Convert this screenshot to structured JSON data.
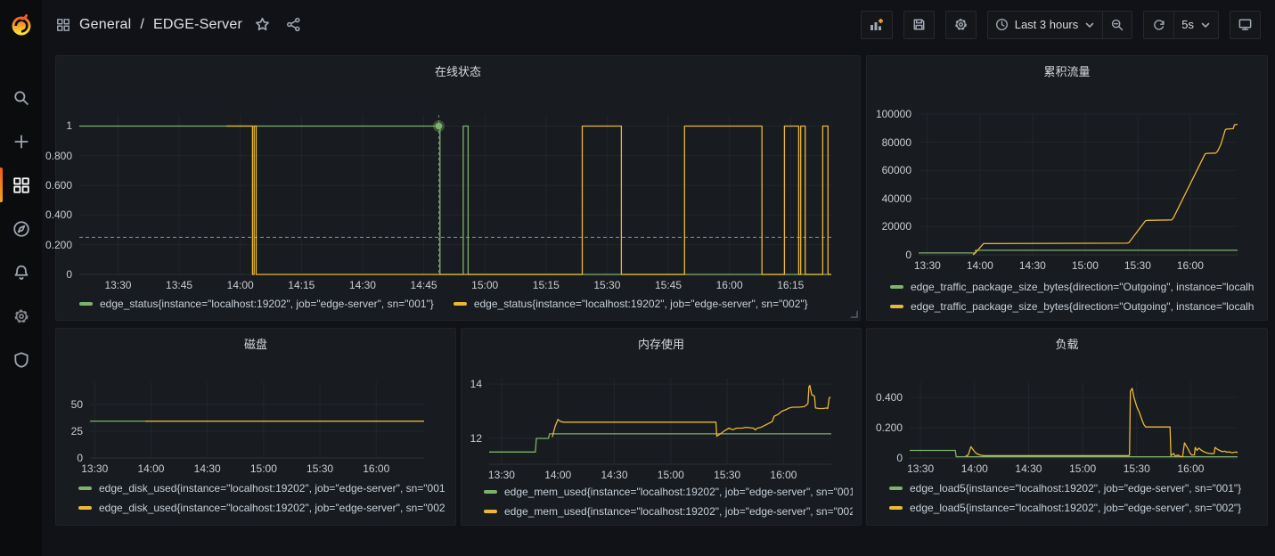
{
  "app": {
    "name": "Grafana"
  },
  "nav": {
    "breadcrumb": {
      "folder": "General",
      "separator": "/",
      "title": "EDGE-Server"
    },
    "icons": {
      "dashboard": "apps-grid-icon",
      "star": "star-icon",
      "share": "share-icon"
    }
  },
  "toolbar": {
    "time_range": "Last 3 hours",
    "refresh_interval": "5s",
    "icons": [
      "add-panel-icon",
      "save-dashboard-icon",
      "dashboard-settings-icon",
      "clock-icon",
      "chevron-down-icon",
      "zoom-out-icon",
      "refresh-icon",
      "tv-mode-icon"
    ]
  },
  "sidebar": {
    "items": [
      {
        "name": "search",
        "icon": "search-icon",
        "active": false
      },
      {
        "name": "create",
        "icon": "plus-icon",
        "active": false
      },
      {
        "name": "dashboards",
        "icon": "apps-grid-icon",
        "active": true
      },
      {
        "name": "explore",
        "icon": "compass-icon",
        "active": false
      },
      {
        "name": "alerting",
        "icon": "bell-icon",
        "active": false
      },
      {
        "name": "configuration",
        "icon": "gear-icon",
        "active": false
      },
      {
        "name": "server-admin",
        "icon": "shield-icon",
        "active": false
      }
    ]
  },
  "colors": {
    "green": "#7EB26D",
    "yellow": "#EAB839",
    "panel_bg": "#181b1f",
    "page_bg": "#111217",
    "accent_orange": "#f2591c"
  },
  "chart_data": [
    {
      "type": "line",
      "title": "在线状态",
      "x_domain": [
        20.5,
        205
      ],
      "y_domain": [
        0,
        1.075
      ],
      "x_ticks": [
        {
          "t": 30,
          "label": "13:30"
        },
        {
          "t": 45,
          "label": "13:45"
        },
        {
          "t": 60,
          "label": "14:00"
        },
        {
          "t": 75,
          "label": "14:15"
        },
        {
          "t": 90,
          "label": "14:30"
        },
        {
          "t": 105,
          "label": "14:45"
        },
        {
          "t": 120,
          "label": "15:00"
        },
        {
          "t": 135,
          "label": "15:15"
        },
        {
          "t": 150,
          "label": "15:30"
        },
        {
          "t": 165,
          "label": "15:45"
        },
        {
          "t": 180,
          "label": "16:00"
        },
        {
          "t": 195,
          "label": "16:15"
        }
      ],
      "y_ticks": [
        {
          "v": 0,
          "label": "0"
        },
        {
          "v": 0.2,
          "label": "0.200"
        },
        {
          "v": 0.4,
          "label": "0.400"
        },
        {
          "v": 0.6,
          "label": "0.600"
        },
        {
          "v": 0.8,
          "label": "0.800"
        },
        {
          "v": 1,
          "label": "1"
        }
      ],
      "threshold": {
        "v": 0.25,
        "color": "rgba(136,162,194,0.85)"
      },
      "annotation": {
        "t": 108.7,
        "v": 1,
        "color": "#7EB26D"
      },
      "legend_layout": "row",
      "series": [
        {
          "name": "edge_status{instance=\"localhost:19202\", job=\"edge-server\", sn=\"001\"}",
          "color": "#7EB26D",
          "mode": "step",
          "points": [
            [
              20.5,
              1
            ],
            [
              109,
              0
            ],
            [
              114.7,
              1
            ],
            [
              115.9,
              0
            ],
            [
              205,
              0
            ]
          ]
        },
        {
          "name": "edge_status{instance=\"localhost:19202\", job=\"edge-server\", sn=\"002\"}",
          "color": "#EAB839",
          "mode": "step",
          "points": [
            [
              56.6,
              1
            ],
            [
              63,
              0
            ],
            [
              63.4,
              1
            ],
            [
              63.9,
              0
            ],
            [
              143.9,
              1
            ],
            [
              153.5,
              0
            ],
            [
              169,
              1
            ],
            [
              188,
              0
            ],
            [
              193.5,
              1
            ],
            [
              197,
              0
            ],
            [
              197.5,
              1
            ],
            [
              198.6,
              0
            ],
            [
              202.9,
              1
            ],
            [
              204.2,
              0
            ],
            [
              205,
              0
            ]
          ]
        }
      ]
    },
    {
      "type": "line",
      "title": "累积流量",
      "x_domain": [
        25,
        207
      ],
      "y_domain": [
        0,
        100000
      ],
      "x_ticks": [
        {
          "t": 30,
          "label": "13:30"
        },
        {
          "t": 60,
          "label": "14:00"
        },
        {
          "t": 90,
          "label": "14:30"
        },
        {
          "t": 120,
          "label": "15:00"
        },
        {
          "t": 150,
          "label": "15:30"
        },
        {
          "t": 180,
          "label": "16:00"
        }
      ],
      "y_ticks": [
        {
          "v": 0,
          "label": "0"
        },
        {
          "v": 20000,
          "label": "20000"
        },
        {
          "v": 40000,
          "label": "40000"
        },
        {
          "v": 60000,
          "label": "60000"
        },
        {
          "v": 80000,
          "label": "80000"
        },
        {
          "v": 100000,
          "label": "100000"
        }
      ],
      "legend_layout": "col",
      "series": [
        {
          "name": "edge_traffic_package_size_bytes{direction=\"Outgoing\", instance=\"localh",
          "color": "#7EB26D",
          "mode": "step",
          "points": [
            [
              25,
              1300
            ],
            [
              57,
              1300
            ],
            [
              57.5,
              3200
            ],
            [
              207,
              3200
            ]
          ]
        },
        {
          "name": "edge_traffic_package_size_bytes{direction=\"Outgoing\", instance=\"localh",
          "color": "#EAB839",
          "mode": "linear",
          "points": [
            [
              56,
              0
            ],
            [
              57.5,
              1500
            ],
            [
              62,
              8000
            ],
            [
              144,
              8300
            ],
            [
              145,
              8600
            ],
            [
              154.5,
              24300
            ],
            [
              156,
              24500
            ],
            [
              169.5,
              24800
            ],
            [
              170.5,
              26500
            ],
            [
              188.5,
              71800
            ],
            [
              189.5,
              72100
            ],
            [
              194.5,
              72300
            ],
            [
              195.5,
              73500
            ],
            [
              196.5,
              75800
            ],
            [
              197.5,
              78500
            ],
            [
              200,
              88800
            ],
            [
              200.6,
              89300
            ],
            [
              204.5,
              89600
            ],
            [
              205.2,
              92400
            ],
            [
              207,
              92700
            ]
          ]
        }
      ]
    },
    {
      "type": "line",
      "title": "磁盘",
      "x_domain": [
        27.5,
        205.5
      ],
      "y_domain": [
        0,
        70.8
      ],
      "x_ticks": [
        {
          "t": 30,
          "label": "13:30"
        },
        {
          "t": 60,
          "label": "14:00"
        },
        {
          "t": 90,
          "label": "14:30"
        },
        {
          "t": 120,
          "label": "15:00"
        },
        {
          "t": 150,
          "label": "15:30"
        },
        {
          "t": 180,
          "label": "16:00"
        }
      ],
      "y_ticks": [
        {
          "v": 0,
          "label": "0"
        },
        {
          "v": 25,
          "label": "25"
        },
        {
          "v": 50,
          "label": "50"
        }
      ],
      "legend_layout": "col",
      "series": [
        {
          "name": "edge_disk_used{instance=\"localhost:19202\", job=\"edge-server\", sn=\"001",
          "color": "#7EB26D",
          "mode": "linear",
          "points": [
            [
              27.5,
              34.5
            ],
            [
              205.5,
              34.5
            ]
          ]
        },
        {
          "name": "edge_disk_used{instance=\"localhost:19202\", job=\"edge-server\", sn=\"002",
          "color": "#EAB839",
          "mode": "linear",
          "points": [
            [
              57,
              34.5
            ],
            [
              205.5,
              34.5
            ]
          ]
        }
      ]
    },
    {
      "type": "line",
      "title": "内存使用",
      "x_domain": [
        23.4,
        205.4
      ],
      "y_domain": [
        11.05,
        14.2
      ],
      "x_ticks": [
        {
          "t": 30,
          "label": "13:30"
        },
        {
          "t": 60,
          "label": "14:00"
        },
        {
          "t": 90,
          "label": "14:30"
        },
        {
          "t": 120,
          "label": "15:00"
        },
        {
          "t": 150,
          "label": "15:30"
        },
        {
          "t": 180,
          "label": "16:00"
        }
      ],
      "y_ticks": [
        {
          "v": 12,
          "label": "12"
        },
        {
          "v": 14,
          "label": "14"
        }
      ],
      "legend_layout": "col",
      "series": [
        {
          "name": "edge_mem_used{instance=\"localhost:19202\", job=\"edge-server\", sn=\"001",
          "color": "#7EB26D",
          "mode": "linear",
          "points": [
            [
              23.4,
              11.5
            ],
            [
              48,
              11.5
            ],
            [
              48.5,
              12.0
            ],
            [
              55,
              12.0
            ],
            [
              55.5,
              12.17
            ],
            [
              205.4,
              12.17
            ]
          ]
        },
        {
          "name": "edge_mem_used{instance=\"localhost:19202\", job=\"edge-server\", sn=\"002",
          "color": "#EAB839",
          "mode": "linear",
          "points": [
            [
              57,
              12.05
            ],
            [
              58.5,
              12.45
            ],
            [
              60,
              12.7
            ],
            [
              61.5,
              12.62
            ],
            [
              63,
              12.6
            ],
            [
              144,
              12.6
            ],
            [
              144.5,
              12.08
            ],
            [
              146,
              12.15
            ],
            [
              149,
              12.3
            ],
            [
              151,
              12.38
            ],
            [
              153,
              12.32
            ],
            [
              155,
              12.38
            ],
            [
              158,
              12.38
            ],
            [
              160,
              12.41
            ],
            [
              164,
              12.38
            ],
            [
              165,
              12.31
            ],
            [
              166,
              12.38
            ],
            [
              168,
              12.41
            ],
            [
              170,
              12.48
            ],
            [
              172,
              12.55
            ],
            [
              174,
              12.62
            ],
            [
              175,
              12.82
            ],
            [
              177,
              12.88
            ],
            [
              179,
              13.0
            ],
            [
              181,
              13.05
            ],
            [
              183,
              13.12
            ],
            [
              185,
              13.15
            ],
            [
              188,
              13.15
            ],
            [
              191,
              13.17
            ],
            [
              192,
              13.22
            ],
            [
              193,
              13.28
            ],
            [
              193.5,
              13.9
            ],
            [
              194,
              13.95
            ],
            [
              194.5,
              13.78
            ],
            [
              195,
              13.6
            ],
            [
              196,
              13.58
            ],
            [
              196.5,
              13.55
            ],
            [
              197,
              13.12
            ],
            [
              199,
              13.1
            ],
            [
              201,
              13.1
            ],
            [
              203,
              13.12
            ],
            [
              203.5,
              13.1
            ],
            [
              204.3,
              13.5
            ],
            [
              205,
              13.52
            ]
          ]
        }
      ]
    },
    {
      "type": "line",
      "title": "负载",
      "x_domain": [
        24,
        206
      ],
      "y_domain": [
        0,
        0.5
      ],
      "x_ticks": [
        {
          "t": 30,
          "label": "13:30"
        },
        {
          "t": 60,
          "label": "14:00"
        },
        {
          "t": 90,
          "label": "14:30"
        },
        {
          "t": 120,
          "label": "15:00"
        },
        {
          "t": 150,
          "label": "15:30"
        },
        {
          "t": 180,
          "label": "16:00"
        }
      ],
      "y_ticks": [
        {
          "v": 0,
          "label": "0"
        },
        {
          "v": 0.2,
          "label": "0.200"
        },
        {
          "v": 0.4,
          "label": "0.400"
        }
      ],
      "legend_layout": "col",
      "series": [
        {
          "name": "edge_load5{instance=\"localhost:19202\", job=\"edge-server\", sn=\"001\"}",
          "color": "#7EB26D",
          "mode": "linear",
          "points": [
            [
              24,
              0.05
            ],
            [
              49.3,
              0.05
            ],
            [
              49.8,
              0.008
            ],
            [
              206,
              0.008
            ]
          ]
        },
        {
          "name": "edge_load5{instance=\"localhost:19202\", job=\"edge-server\", sn=\"002\"}",
          "color": "#EAB839",
          "mode": "linear",
          "points": [
            [
              55,
              0.012
            ],
            [
              56.5,
              0.02
            ],
            [
              58,
              0.075
            ],
            [
              59.5,
              0.05
            ],
            [
              61,
              0.03
            ],
            [
              63,
              0.02
            ],
            [
              65,
              0.015
            ],
            [
              100,
              0.015
            ],
            [
              140,
              0.015
            ],
            [
              145.5,
              0.015
            ],
            [
              146,
              0.02
            ],
            [
              146.5,
              0.44
            ],
            [
              147.5,
              0.46
            ],
            [
              148.5,
              0.4
            ],
            [
              150,
              0.34
            ],
            [
              151.5,
              0.3
            ],
            [
              153,
              0.25
            ],
            [
              154,
              0.22
            ],
            [
              155,
              0.205
            ],
            [
              168.5,
              0.205
            ],
            [
              169,
              0.015
            ],
            [
              170.5,
              0.03
            ],
            [
              171.5,
              0.012
            ],
            [
              173,
              0.02
            ],
            [
              174,
              0.01
            ],
            [
              175.5,
              0.008
            ],
            [
              176.5,
              0.1
            ],
            [
              177.5,
              0.08
            ],
            [
              178.5,
              0.06
            ],
            [
              179.5,
              0.035
            ],
            [
              180.5,
              0.02
            ],
            [
              182,
              0.02
            ],
            [
              182.5,
              0.07
            ],
            [
              183.5,
              0.05
            ],
            [
              184.5,
              0.065
            ],
            [
              186,
              0.05
            ],
            [
              187.5,
              0.04
            ],
            [
              189,
              0.033
            ],
            [
              190.5,
              0.03
            ],
            [
              192,
              0.028
            ],
            [
              193,
              0.03
            ],
            [
              193.5,
              0.07
            ],
            [
              194.5,
              0.06
            ],
            [
              196,
              0.05
            ],
            [
              197.5,
              0.042
            ],
            [
              199,
              0.045
            ],
            [
              200,
              0.038
            ],
            [
              201.5,
              0.04
            ],
            [
              203,
              0.035
            ],
            [
              205,
              0.04
            ],
            [
              206,
              0.035
            ]
          ]
        }
      ]
    }
  ]
}
